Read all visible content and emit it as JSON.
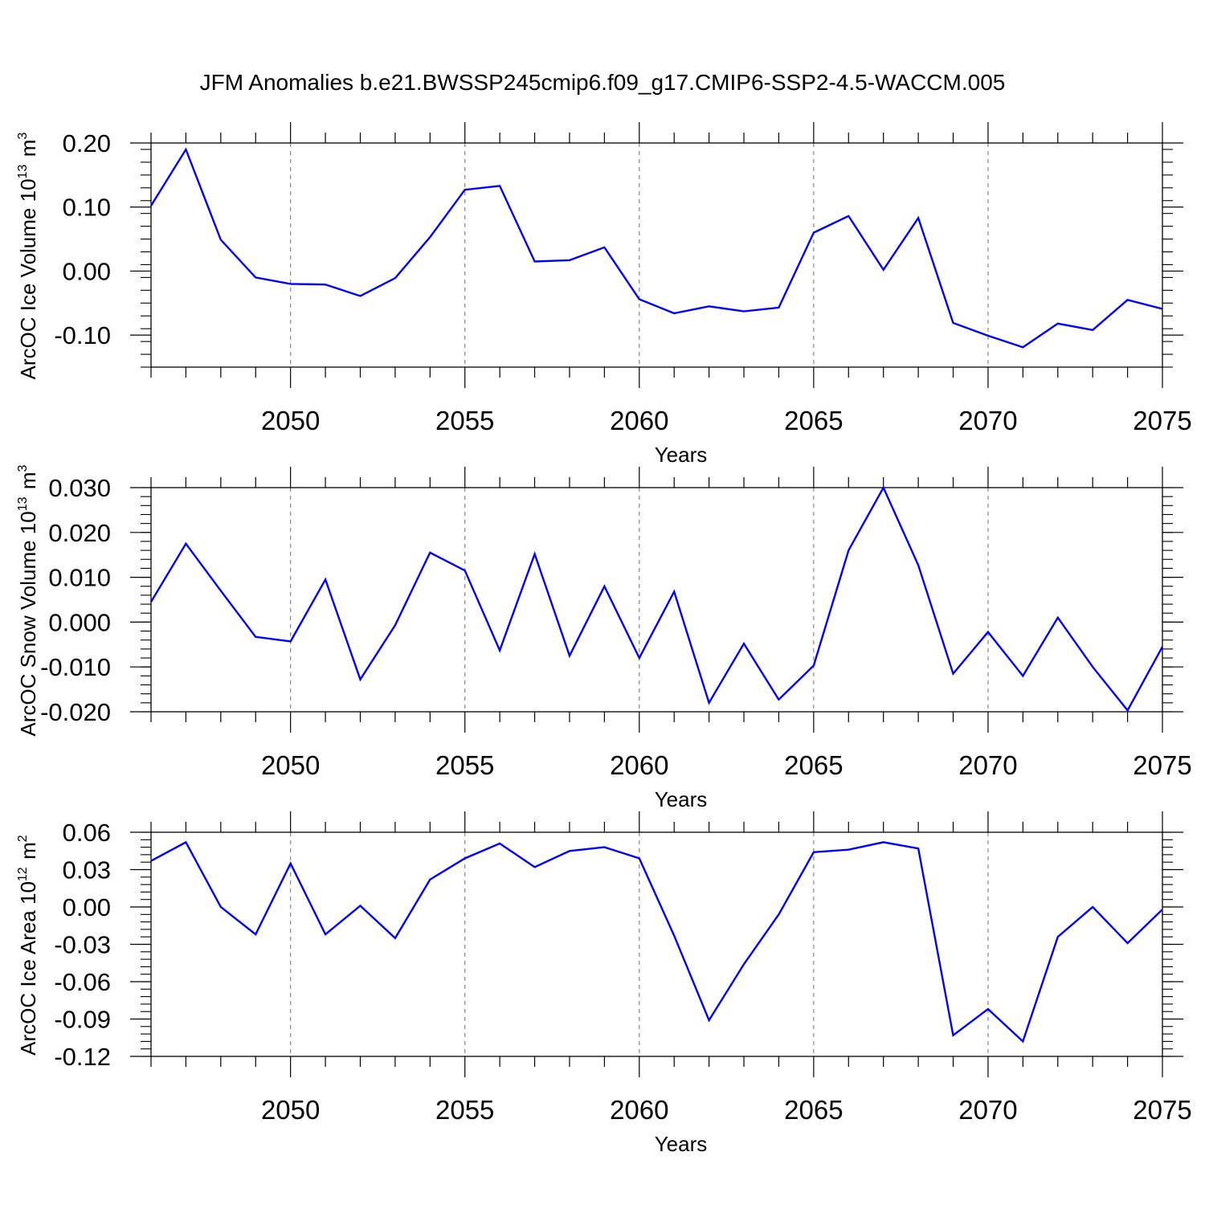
{
  "title": "JFM Anomalies b.e21.BWSSP245cmip6.f09_g17.CMIP6-SSP2-4.5-WACCM.005",
  "colors": {
    "line": "#0000ff",
    "axes": "#000000",
    "grid": "#888888"
  },
  "chart_data": [
    {
      "type": "line",
      "xlabel": "Years",
      "ylabel": {
        "base": "ArcOC Ice Volume 10",
        "exp": "13",
        "unit": " m",
        "unit_exp": "3"
      },
      "xlim": [
        2046,
        2075
      ],
      "ylim": [
        -0.15,
        0.2
      ],
      "xticks": [
        2050,
        2055,
        2060,
        2065,
        2070,
        2075
      ],
      "xtick_labels": [
        "2050",
        "2055",
        "2060",
        "2065",
        "2070",
        "2075"
      ],
      "yticks": [
        0.2,
        0.1,
        0.0,
        -0.1
      ],
      "ytick_labels": [
        "0.20",
        "0.10",
        "0.00",
        "-0.10"
      ],
      "grid": "vertical dashed at major x ticks",
      "x": [
        2046,
        2047,
        2048,
        2049,
        2050,
        2051,
        2052,
        2053,
        2054,
        2055,
        2056,
        2057,
        2058,
        2059,
        2060,
        2061,
        2062,
        2063,
        2064,
        2065,
        2066,
        2067,
        2068,
        2069,
        2070,
        2071,
        2072,
        2073,
        2074,
        2075
      ],
      "values": [
        0.102,
        0.19,
        0.049,
        -0.01,
        -0.02,
        -0.021,
        -0.039,
        -0.011,
        0.053,
        0.127,
        0.133,
        0.015,
        0.017,
        0.037,
        -0.044,
        -0.066,
        -0.055,
        -0.063,
        -0.057,
        0.06,
        0.086,
        0.002,
        0.083,
        -0.081,
        -0.101,
        -0.119,
        -0.082,
        -0.092,
        -0.045,
        -0.059
      ]
    },
    {
      "type": "line",
      "xlabel": "Years",
      "ylabel": {
        "base": "ArcOC Snow Volume 10",
        "exp": "13",
        "unit": " m",
        "unit_exp": "3"
      },
      "xlim": [
        2046,
        2075
      ],
      "ylim": [
        -0.02,
        0.03
      ],
      "xticks": [
        2050,
        2055,
        2060,
        2065,
        2070,
        2075
      ],
      "xtick_labels": [
        "2050",
        "2055",
        "2060",
        "2065",
        "2070",
        "2075"
      ],
      "yticks": [
        0.03,
        0.02,
        0.01,
        0.0,
        -0.01,
        -0.02
      ],
      "ytick_labels": [
        "0.030",
        "0.020",
        "0.010",
        "0.000",
        "-0.010",
        "-0.020"
      ],
      "grid": "vertical dashed at major x ticks",
      "x": [
        2046,
        2047,
        2048,
        2049,
        2050,
        2051,
        2052,
        2053,
        2054,
        2055,
        2056,
        2057,
        2058,
        2059,
        2060,
        2061,
        2062,
        2063,
        2064,
        2065,
        2066,
        2067,
        2068,
        2069,
        2070,
        2071,
        2072,
        2073,
        2074,
        2075
      ],
      "values": [
        0.0045,
        0.0175,
        0.007,
        -0.0033,
        -0.0043,
        0.0095,
        -0.0128,
        -0.0007,
        0.0155,
        0.0115,
        -0.0063,
        0.0152,
        -0.0075,
        0.008,
        -0.008,
        0.0068,
        -0.018,
        -0.0048,
        -0.0173,
        -0.0097,
        0.016,
        0.03,
        0.0127,
        -0.0115,
        -0.0022,
        -0.012,
        0.001,
        -0.01,
        -0.0197,
        -0.0055
      ]
    },
    {
      "type": "line",
      "xlabel": "Years",
      "ylabel": {
        "base": "ArcOC Ice Area 10",
        "exp": "12",
        "unit": " m",
        "unit_exp": "2"
      },
      "xlim": [
        2046,
        2075
      ],
      "ylim": [
        -0.12,
        0.06
      ],
      "xticks": [
        2050,
        2055,
        2060,
        2065,
        2070,
        2075
      ],
      "xtick_labels": [
        "2050",
        "2055",
        "2060",
        "2065",
        "2070",
        "2075"
      ],
      "yticks": [
        0.06,
        0.03,
        0.0,
        -0.03,
        -0.06,
        -0.09,
        -0.12
      ],
      "ytick_labels": [
        "0.06",
        "0.03",
        "0.00",
        "-0.03",
        "-0.06",
        "-0.09",
        "-0.12"
      ],
      "grid": "vertical dashed at major x ticks",
      "x": [
        2046,
        2047,
        2048,
        2049,
        2050,
        2051,
        2052,
        2053,
        2054,
        2055,
        2056,
        2057,
        2058,
        2059,
        2060,
        2061,
        2062,
        2063,
        2064,
        2065,
        2066,
        2067,
        2068,
        2069,
        2070,
        2071,
        2072,
        2073,
        2074,
        2075
      ],
      "values": [
        0.037,
        0.052,
        0.0,
        -0.022,
        0.035,
        -0.022,
        0.001,
        -0.025,
        0.022,
        0.039,
        0.051,
        0.032,
        0.045,
        0.048,
        0.039,
        -0.023,
        -0.091,
        -0.046,
        -0.006,
        0.044,
        0.046,
        0.052,
        0.047,
        -0.103,
        -0.082,
        -0.108,
        -0.024,
        0.0,
        -0.029,
        -0.002
      ]
    }
  ]
}
